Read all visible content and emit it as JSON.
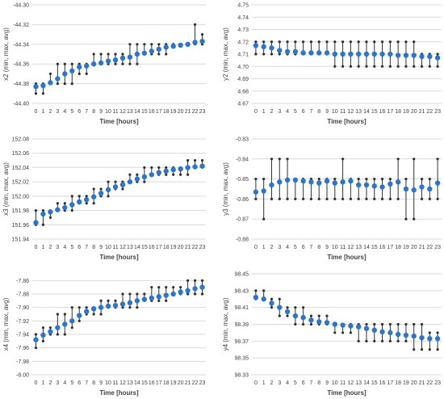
{
  "colors": {
    "avg": "#2e75c8",
    "range": "#303030",
    "grid": "#d9d9d9",
    "text": "#404040"
  },
  "chart_data": [
    {
      "type": "errorbar",
      "ylabel": "x2 (min, max, avg)",
      "xlabel": "Time [hours]",
      "ylim": [
        -44.4,
        -44.3
      ],
      "yticks": [
        "-44.30",
        "-44.32",
        "-44.34",
        "-44.36",
        "-44.38",
        "-44.40"
      ],
      "grid": true,
      "categories": [
        "0",
        "1",
        "2",
        "3",
        "4",
        "5",
        "6",
        "7",
        "8",
        "9",
        "10",
        "11",
        "12",
        "13",
        "14",
        "15",
        "16",
        "17",
        "18",
        "19",
        "20",
        "21",
        "22",
        "23"
      ],
      "avg": [
        -44.383,
        -44.382,
        -44.379,
        -44.375,
        -44.37,
        -44.367,
        -44.363,
        -44.362,
        -44.36,
        -44.359,
        -44.357,
        -44.356,
        -44.354,
        -44.353,
        -44.35,
        -44.349,
        -44.347,
        -44.345,
        -44.343,
        -44.342,
        -44.341,
        -44.34,
        -44.338,
        -44.337
      ],
      "min": [
        -44.39,
        -44.39,
        -44.38,
        -44.38,
        -44.38,
        -44.38,
        -44.37,
        -44.37,
        -44.36,
        -44.36,
        -44.36,
        -44.36,
        -44.36,
        -44.36,
        -44.36,
        -44.35,
        -44.35,
        -44.35,
        -44.35,
        -44.34,
        -44.34,
        -44.34,
        -44.34,
        -44.34
      ],
      "max": [
        -44.38,
        -44.38,
        -44.37,
        -44.36,
        -44.36,
        -44.36,
        -44.36,
        -44.36,
        -44.35,
        -44.35,
        -44.35,
        -44.35,
        -44.35,
        -44.34,
        -44.34,
        -44.34,
        -44.34,
        -44.34,
        -44.34,
        -44.34,
        -44.34,
        -44.34,
        -44.32,
        -44.33
      ]
    },
    {
      "type": "errorbar",
      "ylabel": "y2 (min, max, avg)",
      "xlabel": "Time [hours]",
      "ylim": [
        4.67,
        4.75
      ],
      "yticks": [
        "4.75",
        "4.74",
        "4.73",
        "4.72",
        "4.71",
        "4.70",
        "4.69",
        "4.68",
        "4.67"
      ],
      "grid": true,
      "categories": [
        "0",
        "1",
        "2",
        "3",
        "4",
        "5",
        "6",
        "7",
        "8",
        "9",
        "10",
        "11",
        "12",
        "13",
        "14",
        "15",
        "16",
        "17",
        "18",
        "19",
        "20",
        "21",
        "22",
        "23"
      ],
      "avg": [
        4.717,
        4.716,
        4.715,
        4.713,
        4.712,
        4.712,
        4.711,
        4.711,
        4.711,
        4.711,
        4.71,
        4.71,
        4.71,
        4.71,
        4.71,
        4.71,
        4.71,
        4.71,
        4.709,
        4.709,
        4.709,
        4.708,
        4.708,
        4.707
      ],
      "min": [
        4.71,
        4.71,
        4.71,
        4.71,
        4.71,
        4.71,
        4.71,
        4.71,
        4.71,
        4.71,
        4.7,
        4.7,
        4.7,
        4.7,
        4.7,
        4.7,
        4.7,
        4.7,
        4.7,
        4.7,
        4.7,
        4.7,
        4.7,
        4.7
      ],
      "max": [
        4.72,
        4.72,
        4.72,
        4.72,
        4.72,
        4.72,
        4.72,
        4.72,
        4.72,
        4.72,
        4.72,
        4.72,
        4.72,
        4.72,
        4.72,
        4.72,
        4.72,
        4.72,
        4.72,
        4.72,
        4.72,
        4.71,
        4.71,
        4.71
      ]
    },
    {
      "type": "errorbar",
      "ylabel": "x3 (min, max, avg)",
      "xlabel": "Time [hours]",
      "ylim": [
        151.94,
        152.08
      ],
      "yticks": [
        "152.08",
        "152.06",
        "152.04",
        "152.02",
        "152.00",
        "151.98",
        "151.96",
        "151.94"
      ],
      "grid": true,
      "categories": [
        "0",
        "1",
        "2",
        "3",
        "4",
        "5",
        "6",
        "7",
        "8",
        "9",
        "10",
        "11",
        "12",
        "13",
        "14",
        "15",
        "16",
        "17",
        "18",
        "19",
        "20",
        "21",
        "22",
        "23"
      ],
      "avg": [
        151.963,
        151.975,
        151.978,
        151.981,
        151.984,
        151.988,
        151.992,
        151.995,
        151.999,
        152.004,
        152.009,
        152.013,
        152.016,
        152.02,
        152.024,
        152.027,
        152.03,
        152.033,
        152.035,
        152.037,
        152.038,
        152.04,
        152.041,
        152.042
      ],
      "min": [
        151.96,
        151.96,
        151.97,
        151.98,
        151.98,
        151.98,
        151.99,
        151.99,
        151.99,
        152.0,
        152.0,
        152.01,
        152.01,
        152.02,
        152.02,
        152.02,
        152.03,
        152.03,
        152.03,
        152.03,
        152.03,
        152.03,
        152.04,
        152.04
      ],
      "max": [
        151.98,
        151.98,
        151.98,
        151.99,
        151.99,
        152.0,
        152.0,
        152.0,
        152.01,
        152.01,
        152.02,
        152.02,
        152.02,
        152.03,
        152.03,
        152.04,
        152.04,
        152.04,
        152.04,
        152.04,
        152.04,
        152.05,
        152.05,
        152.05
      ]
    },
    {
      "type": "errorbar",
      "ylabel": "y3 (min, max, avg)",
      "xlabel": "Time [hours]",
      "ylim": [
        -0.88,
        -0.83
      ],
      "yticks": [
        "-0.83",
        "-0.84",
        "-0.85",
        "-0.86",
        "-0.87",
        "-0.88"
      ],
      "grid": true,
      "categories": [
        "0",
        "1",
        "2",
        "3",
        "4",
        "5",
        "6",
        "7",
        "8",
        "9",
        "10",
        "11",
        "12",
        "13",
        "14",
        "15",
        "16",
        "17",
        "18",
        "19",
        "20",
        "21",
        "22",
        "23"
      ],
      "avg": [
        -0.8565,
        -0.856,
        -0.853,
        -0.8515,
        -0.8505,
        -0.8505,
        -0.851,
        -0.8515,
        -0.852,
        -0.851,
        -0.852,
        -0.8515,
        -0.851,
        -0.853,
        -0.853,
        -0.8535,
        -0.854,
        -0.8525,
        -0.8515,
        -0.855,
        -0.8555,
        -0.854,
        -0.855,
        -0.852
      ],
      "min": [
        -0.86,
        -0.87,
        -0.86,
        -0.86,
        -0.86,
        -0.86,
        -0.86,
        -0.86,
        -0.86,
        -0.86,
        -0.86,
        -0.86,
        -0.86,
        -0.86,
        -0.86,
        -0.86,
        -0.86,
        -0.86,
        -0.86,
        -0.87,
        -0.87,
        -0.86,
        -0.86,
        -0.86
      ],
      "max": [
        -0.85,
        -0.85,
        -0.84,
        -0.84,
        -0.84,
        -0.85,
        -0.85,
        -0.85,
        -0.85,
        -0.85,
        -0.85,
        -0.84,
        -0.85,
        -0.85,
        -0.85,
        -0.85,
        -0.85,
        -0.85,
        -0.84,
        -0.85,
        -0.84,
        -0.85,
        -0.85,
        -0.84
      ]
    },
    {
      "type": "errorbar",
      "ylabel": "x4 (min, max, avg)",
      "xlabel": "Time [hours]",
      "ylim": [
        -8.0,
        -7.85
      ],
      "yticks": [
        "-7.86",
        "-7.88",
        "-7.90",
        "-7.92",
        "-7.94",
        "-7.96",
        "-7.98",
        "-8.00"
      ],
      "grid": true,
      "categories": [
        "0",
        "1",
        "2",
        "3",
        "4",
        "5",
        "6",
        "7",
        "8",
        "9",
        "10",
        "11",
        "12",
        "13",
        "14",
        "15",
        "16",
        "17",
        "18",
        "19",
        "20",
        "21",
        "22",
        "23"
      ],
      "avg": [
        -7.948,
        -7.941,
        -7.936,
        -7.93,
        -7.925,
        -7.92,
        -7.912,
        -7.906,
        -7.902,
        -7.9,
        -7.898,
        -7.897,
        -7.895,
        -7.893,
        -7.89,
        -7.888,
        -7.886,
        -7.884,
        -7.882,
        -7.88,
        -7.877,
        -7.875,
        -7.872,
        -7.87
      ],
      "min": [
        -7.96,
        -7.95,
        -7.94,
        -7.94,
        -7.94,
        -7.93,
        -7.92,
        -7.91,
        -7.91,
        -7.91,
        -7.9,
        -7.9,
        -7.9,
        -7.9,
        -7.9,
        -7.89,
        -7.89,
        -7.89,
        -7.89,
        -7.88,
        -7.88,
        -7.88,
        -7.88,
        -7.88
      ],
      "max": [
        -7.94,
        -7.93,
        -7.93,
        -7.91,
        -7.91,
        -7.9,
        -7.9,
        -7.9,
        -7.9,
        -7.89,
        -7.89,
        -7.89,
        -7.88,
        -7.88,
        -7.88,
        -7.88,
        -7.87,
        -7.87,
        -7.87,
        -7.87,
        -7.87,
        -7.86,
        -7.86,
        -7.86
      ]
    },
    {
      "type": "errorbar",
      "ylabel": "y4 (min, max, avg)",
      "xlabel": "Time [hours]",
      "ylim": [
        98.33,
        98.45
      ],
      "yticks": [
        "98.45",
        "98.43",
        "98.41",
        "98.39",
        "98.37",
        "98.35",
        "98.33"
      ],
      "grid": true,
      "categories": [
        "0",
        "1",
        "2",
        "3",
        "4",
        "5",
        "6",
        "7",
        "8",
        "9",
        "10",
        "11",
        "12",
        "13",
        "14",
        "15",
        "16",
        "17",
        "18",
        "19",
        "20",
        "21",
        "22",
        "23"
      ],
      "avg": [
        98.422,
        98.42,
        98.415,
        98.41,
        98.405,
        98.4,
        98.398,
        98.395,
        98.393,
        98.392,
        98.39,
        98.389,
        98.388,
        98.387,
        98.385,
        98.383,
        98.381,
        98.38,
        98.378,
        98.377,
        98.376,
        98.374,
        98.373,
        98.373
      ],
      "min": [
        98.42,
        98.42,
        98.41,
        98.4,
        98.4,
        98.39,
        98.39,
        98.39,
        98.39,
        98.39,
        98.38,
        98.38,
        98.38,
        98.37,
        98.37,
        98.37,
        98.37,
        98.37,
        98.37,
        98.37,
        98.36,
        98.36,
        98.36,
        98.36
      ],
      "max": [
        98.43,
        98.43,
        98.42,
        98.42,
        98.41,
        98.41,
        98.41,
        98.4,
        98.4,
        98.4,
        98.39,
        98.39,
        98.39,
        98.39,
        98.39,
        98.39,
        98.39,
        98.39,
        98.39,
        98.39,
        98.39,
        98.39,
        98.38,
        98.38
      ]
    }
  ]
}
